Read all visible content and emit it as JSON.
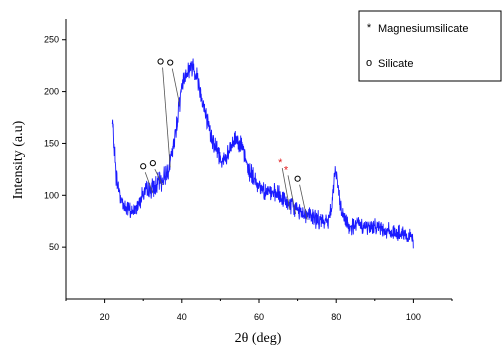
{
  "chart_data": {
    "type": "line",
    "xlabel": "2θ (deg)",
    "ylabel": "Intensity (a.u)",
    "xlim": [
      10,
      110
    ],
    "ylim": [
      0,
      270
    ],
    "xticks": [
      "20",
      "40",
      "60",
      "80",
      "100"
    ],
    "yticks": [
      "50",
      "100",
      "150",
      "200",
      "250"
    ],
    "series": [
      {
        "color": "#1a1aff",
        "noise_amplitude": 12,
        "x": [
          22,
          22.5,
          23,
          24,
          25,
          26,
          27,
          28,
          29,
          30,
          31,
          32,
          33,
          34,
          35,
          36,
          37,
          38,
          39,
          40,
          41,
          42,
          43,
          44,
          45,
          46,
          47,
          48,
          49,
          50,
          51,
          52,
          53,
          54,
          55,
          56,
          57,
          58,
          59,
          60,
          61,
          62,
          63,
          64,
          65,
          66,
          67,
          68,
          69,
          70,
          71,
          72,
          73,
          74,
          75,
          76,
          77,
          78,
          79,
          79.5,
          80,
          80.5,
          81,
          82,
          83,
          84,
          85,
          86,
          87,
          88,
          89,
          90,
          91,
          92,
          93,
          94,
          95,
          96,
          97,
          98,
          99,
          100
        ],
        "y": [
          170,
          145,
          118,
          100,
          90,
          86,
          84,
          86,
          96,
          102,
          104,
          106,
          108,
          112,
          115,
          122,
          132,
          150,
          178,
          205,
          218,
          222,
          225,
          214,
          198,
          180,
          164,
          154,
          144,
          136,
          133,
          138,
          148,
          155,
          152,
          140,
          128,
          120,
          114,
          110,
          106,
          104,
          102,
          101,
          100,
          97,
          94,
          91,
          88,
          86,
          84,
          82,
          81,
          79,
          77,
          75,
          74,
          76,
          96,
          118,
          124,
          108,
          88,
          78,
          72,
          70,
          71,
          72,
          70,
          69,
          69,
          71,
          70,
          68,
          66,
          65,
          64,
          63,
          62,
          60,
          59,
          57
        ]
      }
    ],
    "legend": {
      "position": "top-right",
      "items": [
        {
          "marker": "*",
          "marker_color": "#e41a1c",
          "label": "Magnesiumsilicate"
        },
        {
          "marker": "o",
          "marker_color": "#000000",
          "label": "Silicate"
        }
      ]
    },
    "annotations": [
      {
        "marker": "o",
        "color": "#000000",
        "x": 30,
        "y": 128
      },
      {
        "marker": "o",
        "color": "#000000",
        "x": 32.5,
        "y": 131
      },
      {
        "marker": "o",
        "color": "#000000",
        "x": 34.5,
        "y": 229
      },
      {
        "marker": "o",
        "color": "#000000",
        "x": 37,
        "y": 228
      },
      {
        "marker": "*",
        "color": "#e41a1c",
        "x": 65.5,
        "y": 132
      },
      {
        "marker": "*",
        "color": "#e41a1c",
        "x": 67,
        "y": 125
      },
      {
        "marker": "o",
        "color": "#000000",
        "x": 70,
        "y": 116
      }
    ]
  }
}
